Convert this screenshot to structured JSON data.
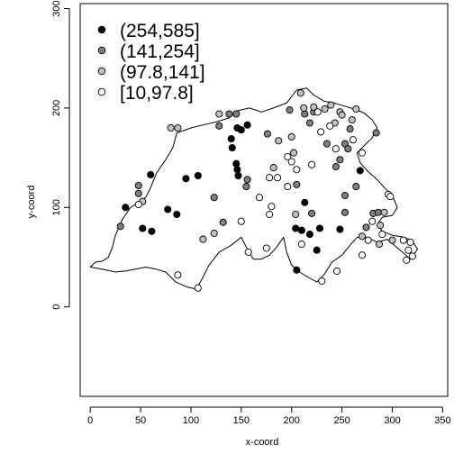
{
  "chart_data": {
    "type": "scatter",
    "title": "",
    "xlabel": "x-coord",
    "ylabel": "y-coord",
    "xlim": [
      -10,
      355
    ],
    "ylim": [
      -90,
      305
    ],
    "x_ticks": [
      0,
      50,
      100,
      150,
      200,
      250,
      300,
      350
    ],
    "y_ticks": [
      0,
      100,
      200,
      300
    ],
    "legend_position": "top-left",
    "border_outline": [
      [
        0,
        40
      ],
      [
        5,
        45
      ],
      [
        12,
        46
      ],
      [
        18,
        50
      ],
      [
        22,
        60
      ],
      [
        25,
        72
      ],
      [
        32,
        88
      ],
      [
        40,
        100
      ],
      [
        48,
        105
      ],
      [
        55,
        110
      ],
      [
        60,
        120
      ],
      [
        66,
        135
      ],
      [
        75,
        148
      ],
      [
        82,
        160
      ],
      [
        86,
        175
      ],
      [
        100,
        180
      ],
      [
        112,
        183
      ],
      [
        125,
        186
      ],
      [
        138,
        190
      ],
      [
        145,
        197
      ],
      [
        158,
        200
      ],
      [
        170,
        196
      ],
      [
        182,
        200
      ],
      [
        195,
        205
      ],
      [
        205,
        218
      ],
      [
        215,
        220
      ],
      [
        222,
        213
      ],
      [
        232,
        207
      ],
      [
        242,
        205
      ],
      [
        252,
        202
      ],
      [
        262,
        199
      ],
      [
        272,
        195
      ],
      [
        280,
        188
      ],
      [
        285,
        180
      ],
      [
        280,
        170
      ],
      [
        272,
        162
      ],
      [
        265,
        155
      ],
      [
        268,
        145
      ],
      [
        276,
        136
      ],
      [
        285,
        128
      ],
      [
        292,
        120
      ],
      [
        300,
        112
      ],
      [
        305,
        100
      ],
      [
        300,
        92
      ],
      [
        290,
        90
      ],
      [
        285,
        83
      ],
      [
        290,
        76
      ],
      [
        300,
        72
      ],
      [
        312,
        70
      ],
      [
        320,
        66
      ],
      [
        325,
        58
      ],
      [
        318,
        48
      ],
      [
        310,
        55
      ],
      [
        302,
        62
      ],
      [
        295,
        68
      ],
      [
        285,
        65
      ],
      [
        275,
        70
      ],
      [
        265,
        70
      ],
      [
        258,
        62
      ],
      [
        250,
        52
      ],
      [
        240,
        45
      ],
      [
        232,
        32
      ],
      [
        225,
        25
      ],
      [
        216,
        30
      ],
      [
        208,
        35
      ],
      [
        200,
        42
      ],
      [
        195,
        55
      ],
      [
        192,
        70
      ],
      [
        185,
        60
      ],
      [
        178,
        52
      ],
      [
        170,
        48
      ],
      [
        162,
        48
      ],
      [
        155,
        60
      ],
      [
        150,
        70
      ],
      [
        140,
        62
      ],
      [
        128,
        55
      ],
      [
        118,
        42
      ],
      [
        110,
        26
      ],
      [
        105,
        18
      ],
      [
        96,
        20
      ],
      [
        85,
        25
      ],
      [
        75,
        35
      ],
      [
        65,
        38
      ],
      [
        55,
        40
      ],
      [
        45,
        38
      ],
      [
        35,
        36
      ],
      [
        25,
        35
      ],
      [
        12,
        38
      ],
      [
        0,
        40
      ]
    ],
    "series": [
      {
        "name": "(254,585]",
        "color": "#000000",
        "points": [
          [
            35,
            100
          ],
          [
            60,
            133
          ],
          [
            52,
            79
          ],
          [
            61,
            76
          ],
          [
            77,
            98
          ],
          [
            86,
            93
          ],
          [
            95,
            129
          ],
          [
            107,
            132
          ],
          [
            141,
            160
          ],
          [
            140,
            169
          ],
          [
            146,
            180
          ],
          [
            150,
            178
          ],
          [
            156,
            183
          ],
          [
            145,
            144
          ],
          [
            146,
            138
          ],
          [
            147,
            132
          ],
          [
            204,
            79
          ],
          [
            210,
            77
          ],
          [
            218,
            73
          ],
          [
            213,
            105
          ],
          [
            228,
            79
          ],
          [
            248,
            78
          ],
          [
            225,
            57
          ],
          [
            205,
            37
          ],
          [
            268,
            137
          ]
        ]
      },
      {
        "name": "(141,254]",
        "color": "#7f7f7f",
        "points": [
          [
            48,
            122
          ],
          [
            48,
            114
          ],
          [
            30,
            81
          ],
          [
            123,
            110
          ],
          [
            132,
            85
          ],
          [
            138,
            194
          ],
          [
            145,
            194
          ],
          [
            128,
            182
          ],
          [
            156,
            128
          ],
          [
            155,
            121
          ],
          [
            176,
            174
          ],
          [
            198,
            198
          ],
          [
            213,
            194
          ],
          [
            222,
            196
          ],
          [
            218,
            185
          ],
          [
            205,
            123
          ],
          [
            220,
            94
          ],
          [
            235,
            164
          ],
          [
            244,
            141
          ],
          [
            248,
            148
          ],
          [
            253,
            164
          ],
          [
            256,
            159
          ],
          [
            258,
            179
          ],
          [
            253,
            95
          ],
          [
            253,
            112
          ],
          [
            264,
            121
          ],
          [
            281,
            94
          ],
          [
            286,
            95
          ],
          [
            284,
            175
          ],
          [
            274,
            80
          ]
        ]
      },
      {
        "name": "(97.8,141]",
        "color": "#c0c0c0",
        "points": [
          [
            52,
            106
          ],
          [
            80,
            180
          ],
          [
            87,
            180
          ],
          [
            112,
            68
          ],
          [
            123,
            74
          ],
          [
            128,
            194
          ],
          [
            182,
            140
          ],
          [
            187,
            167
          ],
          [
            200,
            171
          ],
          [
            202,
            155
          ],
          [
            204,
            93
          ],
          [
            209,
            215
          ],
          [
            212,
            200
          ],
          [
            222,
            201
          ],
          [
            233,
            199
          ],
          [
            239,
            203
          ],
          [
            248,
            196
          ],
          [
            250,
            193
          ],
          [
            243,
            185
          ],
          [
            260,
            188
          ],
          [
            264,
            199
          ],
          [
            288,
            82
          ],
          [
            292,
            95
          ],
          [
            270,
            71
          ],
          [
            287,
            63
          ],
          [
            300,
            67
          ]
        ]
      },
      {
        "name": "[10,97.8]",
        "color": "#ffffff",
        "points": [
          [
            48,
            103
          ],
          [
            87,
            32
          ],
          [
            107,
            19
          ],
          [
            150,
            86
          ],
          [
            157,
            55
          ],
          [
            168,
            110
          ],
          [
            175,
            59
          ],
          [
            178,
            93
          ],
          [
            180,
            101
          ],
          [
            178,
            130
          ],
          [
            186,
            130
          ],
          [
            196,
            121
          ],
          [
            196,
            151
          ],
          [
            200,
            146
          ],
          [
            205,
            138
          ],
          [
            220,
            143
          ],
          [
            226,
            196
          ],
          [
            229,
            176
          ],
          [
            238,
            182
          ],
          [
            244,
            159
          ],
          [
            261,
            168
          ],
          [
            270,
            155
          ],
          [
            276,
            67
          ],
          [
            280,
            86
          ],
          [
            290,
            73
          ],
          [
            296,
            113
          ],
          [
            298,
            111
          ],
          [
            311,
            67
          ],
          [
            316,
            57
          ],
          [
            318,
            65
          ],
          [
            320,
            51
          ],
          [
            314,
            47
          ],
          [
            230,
            26
          ],
          [
            245,
            36
          ],
          [
            210,
            63
          ],
          [
            270,
            52
          ]
        ]
      }
    ]
  }
}
